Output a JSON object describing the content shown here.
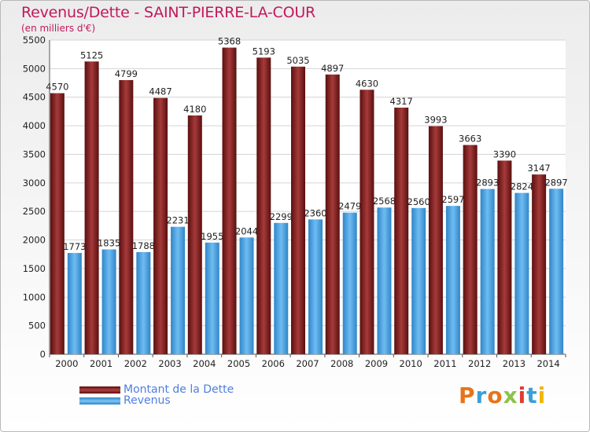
{
  "title": "Revenus/Dette - SAINT-PIERRE-LA-COUR",
  "subtitle": "(en milliers d'€)",
  "logo_text": "Proxiti",
  "colors": {
    "dette": "#7a1a1a",
    "revenus": "#4aa3e8",
    "title": "#c2185b",
    "legend_text": "#4f7fe0"
  },
  "chart_data": {
    "type": "bar",
    "title": "Revenus/Dette - SAINT-PIERRE-LA-COUR",
    "ylabel": "(en milliers d'€)",
    "xlabel": "",
    "ylim": [
      0,
      5500
    ],
    "yticks": [
      0,
      500,
      1000,
      1500,
      2000,
      2500,
      3000,
      3500,
      4000,
      4500,
      5000,
      5500
    ],
    "grid": true,
    "legend": "bottom-left",
    "categories": [
      "2000",
      "2001",
      "2002",
      "2003",
      "2004",
      "2005",
      "2006",
      "2007",
      "2008",
      "2009",
      "2010",
      "2011",
      "2012",
      "2013",
      "2014"
    ],
    "series": [
      {
        "name": "Montant de la Dette",
        "values": [
          4570,
          5125,
          4799,
          4487,
          4180,
          5368,
          5193,
          5035,
          4897,
          4630,
          4317,
          3993,
          3663,
          3390,
          3147
        ]
      },
      {
        "name": "Revenus",
        "values": [
          1773,
          1835,
          1788,
          2231,
          1955,
          2044,
          2299,
          2360,
          2479,
          2568,
          2560,
          2597,
          2893,
          2824,
          2897
        ]
      }
    ]
  }
}
